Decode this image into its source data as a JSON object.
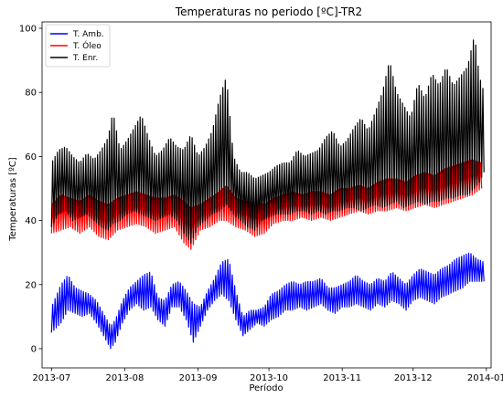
{
  "chart_data": {
    "type": "line",
    "title": "Temperaturas no periodo [ºC]-TR2",
    "xlabel": "Período",
    "ylabel": "Temperaturas [ºC]",
    "x_ticks": [
      "2013-07",
      "2013-08",
      "2013-09",
      "2013-10",
      "2013-11",
      "2013-12",
      "2014-01"
    ],
    "y_ticks": [
      0,
      20,
      40,
      60,
      80,
      100
    ],
    "xlim": [
      "2013-06-27",
      "2014-01-03"
    ],
    "ylim": [
      -6,
      102
    ],
    "legend_position": "top-left",
    "sampling": "daily minimum and maximum (oscillating signal)",
    "series": [
      {
        "name": "T. Amb.",
        "color": "#0000ff",
        "points": [
          [
            "2013-07-01",
            5,
            13
          ],
          [
            "2013-07-05",
            8,
            20
          ],
          [
            "2013-07-08",
            12,
            23
          ],
          [
            "2013-07-11",
            11,
            19
          ],
          [
            "2013-07-14",
            10,
            18
          ],
          [
            "2013-07-17",
            11,
            17
          ],
          [
            "2013-07-20",
            8,
            15
          ],
          [
            "2013-07-23",
            4,
            11
          ],
          [
            "2013-07-26",
            0,
            7
          ],
          [
            "2013-07-28",
            2,
            9
          ],
          [
            "2013-07-31",
            8,
            15
          ],
          [
            "2013-08-03",
            12,
            19
          ],
          [
            "2013-08-06",
            14,
            21
          ],
          [
            "2013-08-09",
            12,
            23
          ],
          [
            "2013-08-12",
            13,
            24
          ],
          [
            "2013-08-15",
            9,
            16
          ],
          [
            "2013-08-18",
            7,
            15
          ],
          [
            "2013-08-21",
            13,
            20
          ],
          [
            "2013-08-24",
            13,
            21
          ],
          [
            "2013-08-27",
            9,
            18
          ],
          [
            "2013-08-30",
            2,
            14
          ],
          [
            "2013-09-02",
            7,
            13
          ],
          [
            "2013-09-05",
            12,
            18
          ],
          [
            "2013-09-08",
            15,
            22
          ],
          [
            "2013-09-11",
            17,
            27
          ],
          [
            "2013-09-14",
            15,
            28
          ],
          [
            "2013-09-17",
            9,
            18
          ],
          [
            "2013-09-20",
            4,
            10
          ],
          [
            "2013-09-23",
            6,
            12
          ],
          [
            "2013-09-26",
            8,
            12
          ],
          [
            "2013-09-29",
            7,
            13
          ],
          [
            "2013-10-02",
            9,
            17
          ],
          [
            "2013-10-05",
            10,
            18
          ],
          [
            "2013-10-08",
            12,
            20
          ],
          [
            "2013-10-11",
            12,
            21
          ],
          [
            "2013-10-14",
            13,
            20
          ],
          [
            "2013-10-17",
            12,
            21
          ],
          [
            "2013-10-20",
            13,
            21
          ],
          [
            "2013-10-23",
            14,
            22
          ],
          [
            "2013-10-26",
            12,
            19
          ],
          [
            "2013-10-29",
            11,
            19
          ],
          [
            "2013-11-01",
            13,
            20
          ],
          [
            "2013-11-04",
            13,
            21
          ],
          [
            "2013-11-07",
            14,
            23
          ],
          [
            "2013-11-10",
            13,
            21
          ],
          [
            "2013-11-13",
            12,
            20
          ],
          [
            "2013-11-16",
            14,
            22
          ],
          [
            "2013-11-19",
            13,
            21
          ],
          [
            "2013-11-22",
            15,
            24
          ],
          [
            "2013-11-25",
            14,
            22
          ],
          [
            "2013-11-28",
            12,
            20
          ],
          [
            "2013-12-01",
            15,
            23
          ],
          [
            "2013-12-04",
            16,
            25
          ],
          [
            "2013-12-07",
            15,
            24
          ],
          [
            "2013-12-10",
            14,
            23
          ],
          [
            "2013-12-13",
            16,
            25
          ],
          [
            "2013-12-16",
            17,
            26
          ],
          [
            "2013-12-19",
            18,
            28
          ],
          [
            "2013-12-22",
            19,
            29
          ],
          [
            "2013-12-25",
            21,
            30
          ],
          [
            "2013-12-28",
            21,
            28
          ],
          [
            "2013-12-31",
            21,
            27
          ]
        ]
      },
      {
        "name": "T. Óleo",
        "color": "#ff0000",
        "points": [
          [
            "2013-07-01",
            36,
            45
          ],
          [
            "2013-07-05",
            37,
            48
          ],
          [
            "2013-07-09",
            38,
            47
          ],
          [
            "2013-07-13",
            36,
            46
          ],
          [
            "2013-07-17",
            38,
            48
          ],
          [
            "2013-07-21",
            35,
            46
          ],
          [
            "2013-07-25",
            34,
            45
          ],
          [
            "2013-07-29",
            37,
            47
          ],
          [
            "2013-08-02",
            38,
            48
          ],
          [
            "2013-08-06",
            39,
            49
          ],
          [
            "2013-08-10",
            38,
            48
          ],
          [
            "2013-08-14",
            36,
            47
          ],
          [
            "2013-08-18",
            37,
            47
          ],
          [
            "2013-08-22",
            38,
            48
          ],
          [
            "2013-08-26",
            33,
            46
          ],
          [
            "2013-08-29",
            31,
            44
          ],
          [
            "2013-09-02",
            37,
            45
          ],
          [
            "2013-09-06",
            38,
            47
          ],
          [
            "2013-09-10",
            40,
            49
          ],
          [
            "2013-09-13",
            40,
            51
          ],
          [
            "2013-09-17",
            38,
            47
          ],
          [
            "2013-09-21",
            37,
            46
          ],
          [
            "2013-09-25",
            35,
            46
          ],
          [
            "2013-09-29",
            36,
            45
          ],
          [
            "2013-10-03",
            39,
            47
          ],
          [
            "2013-10-07",
            40,
            48
          ],
          [
            "2013-10-11",
            40,
            49
          ],
          [
            "2013-10-15",
            41,
            48
          ],
          [
            "2013-10-19",
            40,
            49
          ],
          [
            "2013-10-23",
            41,
            49
          ],
          [
            "2013-10-27",
            40,
            48
          ],
          [
            "2013-10-31",
            41,
            50
          ],
          [
            "2013-11-04",
            42,
            50
          ],
          [
            "2013-11-08",
            43,
            51
          ],
          [
            "2013-11-12",
            42,
            50
          ],
          [
            "2013-11-16",
            43,
            52
          ],
          [
            "2013-11-20",
            43,
            53
          ],
          [
            "2013-11-24",
            44,
            53
          ],
          [
            "2013-11-28",
            43,
            52
          ],
          [
            "2013-12-02",
            44,
            54
          ],
          [
            "2013-12-06",
            45,
            55
          ],
          [
            "2013-12-10",
            44,
            54
          ],
          [
            "2013-12-14",
            45,
            56
          ],
          [
            "2013-12-18",
            46,
            57
          ],
          [
            "2013-12-22",
            47,
            58
          ],
          [
            "2013-12-26",
            48,
            59
          ],
          [
            "2013-12-30",
            50,
            58
          ]
        ]
      },
      {
        "name": "T. Enr.",
        "color": "#000000",
        "points": [
          [
            "2013-07-01",
            38,
            58
          ],
          [
            "2013-07-04",
            42,
            62
          ],
          [
            "2013-07-07",
            43,
            63
          ],
          [
            "2013-07-10",
            40,
            60
          ],
          [
            "2013-07-13",
            41,
            58
          ],
          [
            "2013-07-16",
            42,
            61
          ],
          [
            "2013-07-19",
            40,
            59
          ],
          [
            "2013-07-22",
            38,
            62
          ],
          [
            "2013-07-25",
            37,
            66
          ],
          [
            "2013-07-27",
            39,
            74
          ],
          [
            "2013-07-30",
            40,
            62
          ],
          [
            "2013-08-02",
            42,
            65
          ],
          [
            "2013-08-05",
            43,
            69
          ],
          [
            "2013-08-08",
            42,
            73
          ],
          [
            "2013-08-11",
            41,
            66
          ],
          [
            "2013-08-14",
            40,
            60
          ],
          [
            "2013-08-17",
            41,
            62
          ],
          [
            "2013-08-20",
            42,
            66
          ],
          [
            "2013-08-23",
            40,
            63
          ],
          [
            "2013-08-26",
            36,
            62
          ],
          [
            "2013-08-29",
            33,
            67
          ],
          [
            "2013-09-01",
            38,
            60
          ],
          [
            "2013-09-04",
            40,
            63
          ],
          [
            "2013-09-07",
            42,
            68
          ],
          [
            "2013-09-10",
            43,
            78
          ],
          [
            "2013-09-13",
            45,
            85
          ],
          [
            "2013-09-16",
            42,
            60
          ],
          [
            "2013-09-19",
            40,
            55
          ],
          [
            "2013-09-22",
            38,
            55
          ],
          [
            "2013-09-25",
            37,
            53
          ],
          [
            "2013-09-28",
            40,
            54
          ],
          [
            "2013-10-01",
            41,
            55
          ],
          [
            "2013-10-04",
            42,
            57
          ],
          [
            "2013-10-07",
            42,
            58
          ],
          [
            "2013-10-10",
            42,
            58
          ],
          [
            "2013-10-13",
            43,
            62
          ],
          [
            "2013-10-16",
            43,
            60
          ],
          [
            "2013-10-19",
            42,
            61
          ],
          [
            "2013-10-22",
            43,
            62
          ],
          [
            "2013-10-25",
            42,
            66
          ],
          [
            "2013-10-28",
            43,
            68
          ],
          [
            "2013-10-31",
            43,
            63
          ],
          [
            "2013-11-03",
            44,
            65
          ],
          [
            "2013-11-06",
            44,
            69
          ],
          [
            "2013-11-09",
            43,
            72
          ],
          [
            "2013-11-12",
            44,
            68
          ],
          [
            "2013-11-15",
            45,
            74
          ],
          [
            "2013-11-18",
            44,
            80
          ],
          [
            "2013-11-21",
            45,
            90
          ],
          [
            "2013-11-24",
            46,
            80
          ],
          [
            "2013-11-27",
            44,
            76
          ],
          [
            "2013-11-30",
            45,
            72
          ],
          [
            "2013-12-03",
            46,
            83
          ],
          [
            "2013-12-06",
            45,
            78
          ],
          [
            "2013-12-09",
            46,
            86
          ],
          [
            "2013-12-12",
            46,
            82
          ],
          [
            "2013-12-15",
            47,
            88
          ],
          [
            "2013-12-18",
            47,
            82
          ],
          [
            "2013-12-21",
            48,
            85
          ],
          [
            "2013-12-24",
            48,
            88
          ],
          [
            "2013-12-27",
            50,
            98
          ],
          [
            "2013-12-29",
            52,
            85
          ],
          [
            "2013-12-31",
            55,
            80
          ]
        ]
      }
    ]
  }
}
